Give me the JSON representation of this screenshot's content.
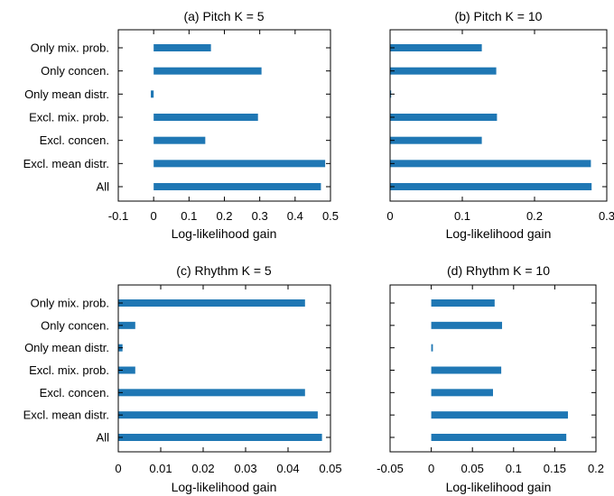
{
  "colors": {
    "bar": "#1f77b4",
    "axis": "#000000",
    "background": "#ffffff"
  },
  "chart_data": [
    {
      "type": "bar",
      "orientation": "horizontal",
      "title": "(a) Pitch K = 5",
      "xlabel": "Log-likelihood gain",
      "ylabel": "",
      "categories": [
        "Only mix. prob.",
        "Only concen.",
        "Only mean distr.",
        "Excl. mix. prob.",
        "Excl. concen.",
        "Excl. mean distr.",
        "All"
      ],
      "values": [
        0.162,
        0.305,
        -0.008,
        0.295,
        0.146,
        0.485,
        0.473
      ],
      "xlim": [
        -0.1,
        0.5
      ],
      "xticks": [
        "-0.1",
        "0",
        "0.1",
        "0.2",
        "0.3",
        "0.4",
        "0.5"
      ],
      "show_yticklabels": true,
      "grid": false
    },
    {
      "type": "bar",
      "orientation": "horizontal",
      "title": "(b) Pitch K = 10",
      "xlabel": "Log-likelihood gain",
      "ylabel": "",
      "categories": [
        "Only mix. prob.",
        "Only concen.",
        "Only mean distr.",
        "Excl. mix. prob.",
        "Excl. concen.",
        "Excl. mean distr.",
        "All"
      ],
      "values": [
        0.127,
        0.147,
        0.0,
        0.148,
        0.127,
        0.278,
        0.279
      ],
      "xlim": [
        0,
        0.3
      ],
      "xticks": [
        "0",
        "0.1",
        "0.2",
        "0.3"
      ],
      "show_yticklabels": false,
      "grid": false
    },
    {
      "type": "bar",
      "orientation": "horizontal",
      "title": "(c) Rhythm K = 5",
      "xlabel": "Log-likelihood gain",
      "ylabel": "",
      "categories": [
        "Only mix. prob.",
        "Only concen.",
        "Only mean distr.",
        "Excl. mix. prob.",
        "Excl. concen.",
        "Excl. mean distr.",
        "All"
      ],
      "values": [
        0.044,
        0.004,
        0.001,
        0.004,
        0.044,
        0.047,
        0.048
      ],
      "xlim": [
        0,
        0.05
      ],
      "xticks": [
        "0",
        "0.01",
        "0.02",
        "0.03",
        "0.04",
        "0.05"
      ],
      "show_yticklabels": true,
      "grid": false
    },
    {
      "type": "bar",
      "orientation": "horizontal",
      "title": "(d) Rhythm K = 10",
      "xlabel": "Log-likelihood gain",
      "ylabel": "",
      "categories": [
        "Only mix. prob.",
        "Only concen.",
        "Only mean distr.",
        "Excl. mix. prob.",
        "Excl. concen.",
        "Excl. mean distr.",
        "All"
      ],
      "values": [
        0.077,
        0.086,
        0.002,
        0.085,
        0.075,
        0.166,
        0.164
      ],
      "xlim": [
        -0.05,
        0.2
      ],
      "xticks": [
        "-0.05",
        "0",
        "0.05",
        "0.1",
        "0.15",
        "0.2"
      ],
      "show_yticklabels": false,
      "grid": false
    }
  ]
}
